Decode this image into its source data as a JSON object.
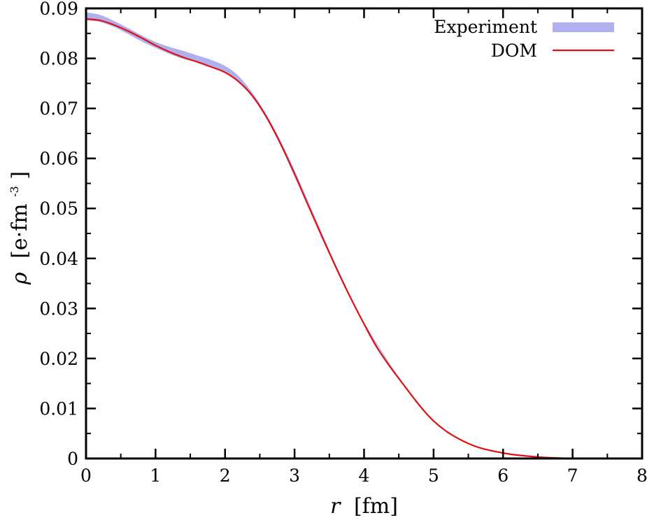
{
  "chart_data": {
    "type": "line",
    "title": "",
    "xlabel": {
      "symbol": "r",
      "unit": "[fm]"
    },
    "ylabel": {
      "symbol": "ρ",
      "unit": "[e·fm",
      "exponent": "-3",
      "close": "]"
    },
    "xlim": [
      0,
      8
    ],
    "ylim": [
      0,
      0.09
    ],
    "x_ticks": [
      0,
      1,
      2,
      3,
      4,
      5,
      6,
      7,
      8
    ],
    "x_tick_labels": [
      "0",
      "1",
      "2",
      "3",
      "4",
      "5",
      "6",
      "7",
      "8"
    ],
    "y_ticks": [
      0,
      0.01,
      0.02,
      0.03,
      0.04,
      0.05,
      0.06,
      0.07,
      0.08,
      0.09
    ],
    "y_tick_labels": [
      "0",
      "0.01",
      "0.02",
      "0.03",
      "0.04",
      "0.05",
      "0.06",
      "0.07",
      "0.08",
      "0.09"
    ],
    "x_minor_step": 0.5,
    "y_minor_step": 0.005,
    "grid": false,
    "legend_position": "top-right",
    "series": [
      {
        "name": "Experiment",
        "style": "band",
        "color": "#b0b0ee",
        "x": [
          0,
          0.2,
          0.4,
          0.6,
          0.8,
          1.0,
          1.2,
          1.4,
          1.6,
          1.8,
          2.0,
          2.2,
          2.4,
          2.6,
          2.8,
          3.0,
          3.2,
          3.4,
          3.6,
          3.8,
          4.0,
          4.5,
          5.0,
          5.5,
          6.0,
          6.5,
          7.0
        ],
        "y_upper": [
          0.0892,
          0.0887,
          0.0875,
          0.0861,
          0.0846,
          0.0833,
          0.0823,
          0.0815,
          0.0806,
          0.0797,
          0.0785,
          0.0764,
          0.073,
          0.0686,
          0.0635,
          0.0576,
          0.0513,
          0.0449,
          0.0386,
          0.0326,
          0.0272,
          0.0163,
          0.0076,
          0.0031,
          0.0012,
          0.0004,
          0.0001
        ],
        "y_lower": [
          0.0876,
          0.0873,
          0.0863,
          0.0849,
          0.0834,
          0.0821,
          0.0809,
          0.0799,
          0.0792,
          0.0783,
          0.0771,
          0.0752,
          0.0721,
          0.0678,
          0.0625,
          0.0564,
          0.0503,
          0.0441,
          0.038,
          0.0322,
          0.0268,
          0.016,
          0.0074,
          0.0029,
          0.001,
          0.0003,
          0.0
        ]
      },
      {
        "name": "DOM",
        "style": "line",
        "color": "#e01010",
        "x": [
          0,
          0.2,
          0.4,
          0.6,
          0.8,
          1.0,
          1.2,
          1.4,
          1.6,
          1.8,
          2.0,
          2.2,
          2.4,
          2.6,
          2.8,
          3.0,
          3.2,
          3.4,
          3.6,
          3.8,
          4.0,
          4.2,
          4.5,
          5.0,
          5.5,
          6.0,
          6.5,
          7.0
        ],
        "y": [
          0.0879,
          0.0876,
          0.0867,
          0.0855,
          0.0841,
          0.0826,
          0.0813,
          0.0802,
          0.0793,
          0.0783,
          0.0772,
          0.0753,
          0.0724,
          0.0682,
          0.0629,
          0.0569,
          0.0505,
          0.0442,
          0.0381,
          0.0323,
          0.0269,
          0.0219,
          0.016,
          0.0075,
          0.003,
          0.0011,
          0.0003,
          0.0
        ]
      }
    ]
  }
}
